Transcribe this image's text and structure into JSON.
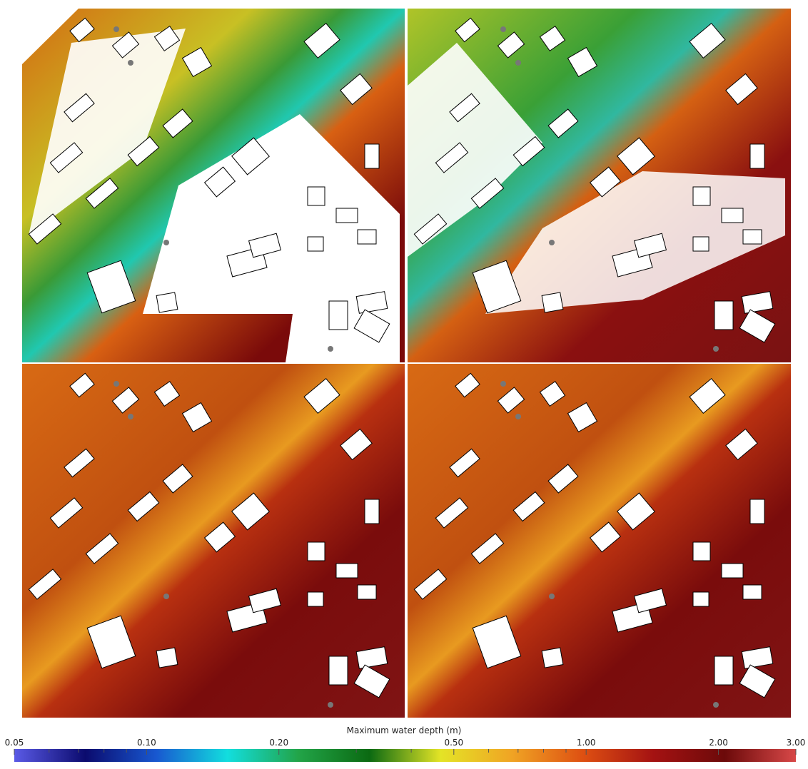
{
  "chart_data": {
    "type": "colorbar",
    "title": "Maximum water depth (m)",
    "log_scale": true,
    "xlim": [
      0.05,
      3.0
    ],
    "xticks": [
      0.05,
      {
        "value": 0.1,
        "label": "0.10"
      },
      {
        "value": 0.2,
        "label": "0.20"
      },
      {
        "value": 0.5,
        "label": "0.50"
      },
      {
        "value": 1,
        "label": "1.00"
      },
      {
        "value": 2,
        "label": "2.00"
      },
      {
        "value": 3,
        "label": "3.00"
      }
    ],
    "minor_xticks": [
      0.06,
      0.07,
      0.08,
      0.09,
      0.3,
      0.4,
      0.6,
      0.7,
      0.8,
      0.9
    ],
    "colormap": [
      "#5a5ae6",
      "#0b0b6e",
      "#1858d0",
      "#12dede",
      "#22a448",
      "#0b6a12",
      "#e4e426",
      "#f0a424",
      "#de5012",
      "#a41212",
      "#6c0a0a",
      "#d84848"
    ]
  }
}
